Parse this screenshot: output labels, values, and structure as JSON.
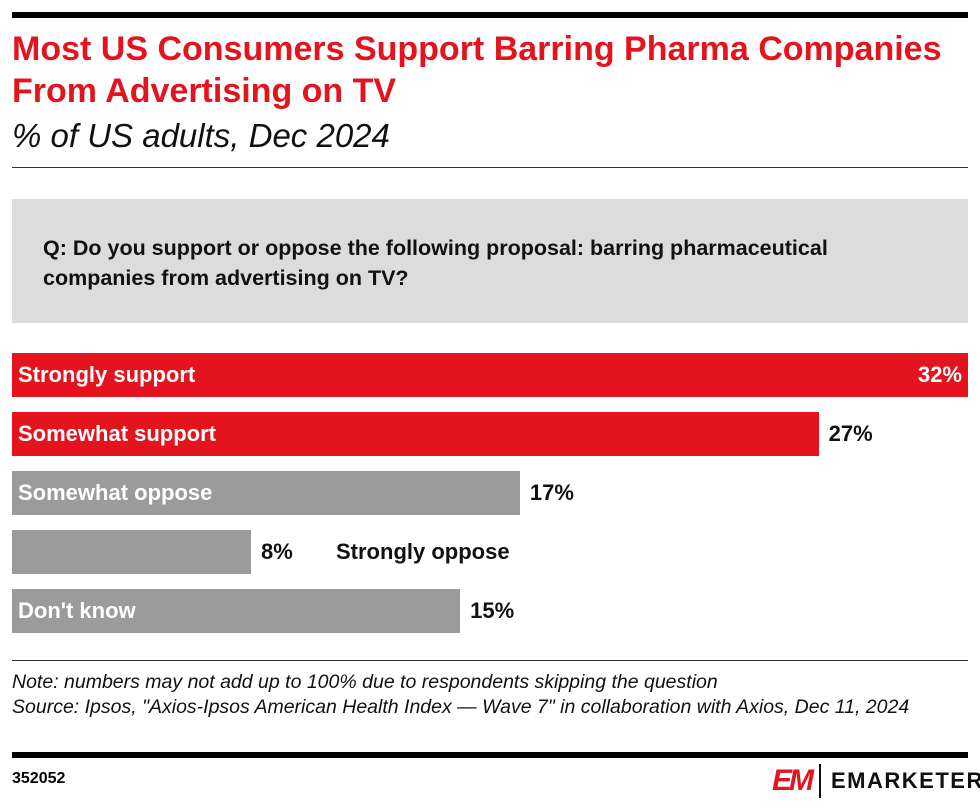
{
  "title": "Most US Consumers Support Barring Pharma Companies From Advertising on TV",
  "subtitle": "% of US adults, Dec 2024",
  "question": "Q: Do you support or oppose the following proposal: barring pharmaceutical companies from advertising on TV?",
  "chart_data": {
    "type": "bar",
    "orientation": "horizontal",
    "categories": [
      "Strongly support",
      "Somewhat support",
      "Somewhat oppose",
      "Strongly oppose",
      "Don't know"
    ],
    "values": [
      32,
      27,
      17,
      8,
      15
    ],
    "value_labels": [
      "32%",
      "27%",
      "17%",
      "8%",
      "15%"
    ],
    "colors": [
      "#e4141e",
      "#e4141e",
      "#9b9b9b",
      "#9b9b9b",
      "#9b9b9b"
    ],
    "xlim": [
      0,
      32
    ]
  },
  "note": "Note: numbers may not add up to 100% due to respondents skipping the question",
  "source": "Source: Ipsos, \"Axios-Ipsos American Health Index — Wave 7\" in collaboration with Axios, Dec 11, 2024",
  "chart_id": "352052",
  "brand": "EMARKETER",
  "brand_mark": "EM"
}
